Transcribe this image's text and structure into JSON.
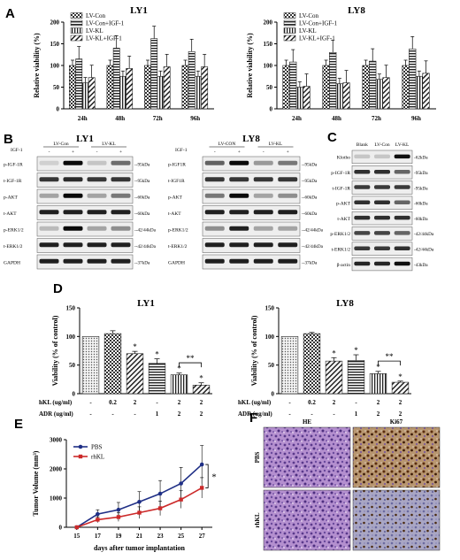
{
  "panels": {
    "A": "A",
    "B": "B",
    "C": "C",
    "D": "D",
    "E": "E",
    "F": "F"
  },
  "panel_a": {
    "y_label": "Relative viability (%)",
    "legend": [
      "LV-Con",
      "LV-Con+IGF-1",
      "LV-KL",
      "LV-KL+IGF-1"
    ],
    "charts": [
      {
        "title": "LY1",
        "categories": [
          "24h",
          "48h",
          "72h",
          "96h"
        ],
        "y_ticks": [
          "0",
          "50",
          "100",
          "150",
          "200"
        ],
        "series": [
          [
            100,
            100,
            100,
            100
          ],
          [
            115,
            140,
            162,
            132
          ],
          [
            60,
            75,
            75,
            75
          ],
          [
            72,
            93,
            97,
            97
          ]
        ]
      },
      {
        "title": "LY8",
        "categories": [
          "24h",
          "48h",
          "72h",
          "96h"
        ],
        "y_ticks": [
          "0",
          "50",
          "100",
          "150",
          "200"
        ],
        "series": [
          [
            100,
            100,
            100,
            100
          ],
          [
            108,
            130,
            110,
            138
          ],
          [
            50,
            58,
            68,
            75
          ],
          [
            52,
            60,
            72,
            82
          ]
        ]
      }
    ]
  },
  "panel_b": {
    "blots": [
      {
        "title": "LY1",
        "treat_label": "IGF-1",
        "groups": [
          "LV-Con",
          "LV-KL"
        ],
        "signs": [
          "-",
          "+",
          "-",
          "+"
        ],
        "rows": [
          "p-IGF-1R",
          "t-IGF-1R",
          "p-AKT",
          "t-AKT",
          "p-ERK1/2",
          "t-ERK1/2",
          "GAPDH"
        ],
        "kda": [
          "95kDa",
          "95kDa",
          "60kDa",
          "60kDa",
          "42/44kDa",
          "42/44kDa",
          "37kDa"
        ]
      },
      {
        "title": "LY8",
        "treat_label": "IGF-1",
        "groups": [
          "LV-CON",
          "LV-KL"
        ],
        "signs": [
          "-",
          "+",
          "-",
          "+"
        ],
        "rows": [
          "p-IGF1R",
          "t-IGF1R",
          "p-AKT",
          "t-AKT",
          "p-ERK1/2",
          "t-ERK1/2",
          "GAPDH"
        ],
        "kda": [
          "95kDa",
          "95kDa",
          "60kDa",
          "60kDa",
          "42/44kDa",
          "42/44kDa",
          "37kDa"
        ]
      }
    ]
  },
  "panel_c": {
    "lanes": [
      "Blank",
      "LV-Con",
      "LV-KL"
    ],
    "rows": [
      "Klotho",
      "p-IGF-1R",
      "t-IGF-1R",
      "p-AKT",
      "t-AKT",
      "p-ERK1/2",
      "t-ERK1/2",
      "β-actin"
    ],
    "kda": [
      "62kDa",
      "95kDa",
      "95kDa",
      "60kDa",
      "60kDa",
      "42/44kDa",
      "42/44kDa",
      "43kDa"
    ]
  },
  "panel_d": {
    "y_label": "Viability (% of control)",
    "row_labels": [
      "hKL (ug/ml)",
      "ADR (ug/ml)"
    ],
    "hkl": [
      "-",
      "0.2",
      "2",
      "-",
      "2",
      "2"
    ],
    "adr": [
      "-",
      "-",
      "-",
      "1",
      "2",
      "2"
    ],
    "y_ticks": [
      "0",
      "50",
      "100",
      "150"
    ],
    "charts": [
      {
        "title": "LY1",
        "values": [
          100,
          105,
          70,
          53,
          33,
          15
        ],
        "errors": [
          0,
          5,
          4,
          8,
          3,
          4
        ],
        "stars": [
          "",
          "",
          "*",
          "*",
          "*",
          "*"
        ],
        "bracket": "**"
      },
      {
        "title": "LY8",
        "values": [
          100,
          105,
          57,
          58,
          35,
          20
        ],
        "errors": [
          0,
          2,
          6,
          10,
          4,
          2
        ],
        "stars": [
          "",
          "",
          "*",
          "*",
          "*",
          "*"
        ],
        "bracket": "**"
      }
    ]
  },
  "chart_data": {
    "type": "line",
    "x": [
      15,
      17,
      19,
      21,
      23,
      25,
      27
    ],
    "x_ticks": [
      "15",
      "17",
      "19",
      "21",
      "23",
      "25",
      "27"
    ],
    "y_ticks": [
      "0",
      "1000",
      "2000",
      "3000"
    ],
    "xlabel": "days after tumor implantation",
    "ylabel": "Tumor Volume (mm³)",
    "ylim": [
      0,
      3000
    ],
    "series": [
      {
        "name": "PBS",
        "color": "#1f2f86",
        "values": [
          0,
          450,
          600,
          870,
          1150,
          1500,
          2150
        ],
        "errors": [
          0,
          150,
          250,
          350,
          450,
          550,
          650
        ]
      },
      {
        "name": "rhKL",
        "color": "#cc2a2a",
        "values": [
          0,
          260,
          350,
          500,
          650,
          950,
          1350
        ],
        "errors": [
          0,
          100,
          150,
          200,
          250,
          300,
          350
        ]
      }
    ],
    "significance": "*"
  },
  "panel_f": {
    "cols": [
      "HE",
      "Ki67"
    ],
    "rows": [
      "PBS",
      "rhKL"
    ]
  }
}
